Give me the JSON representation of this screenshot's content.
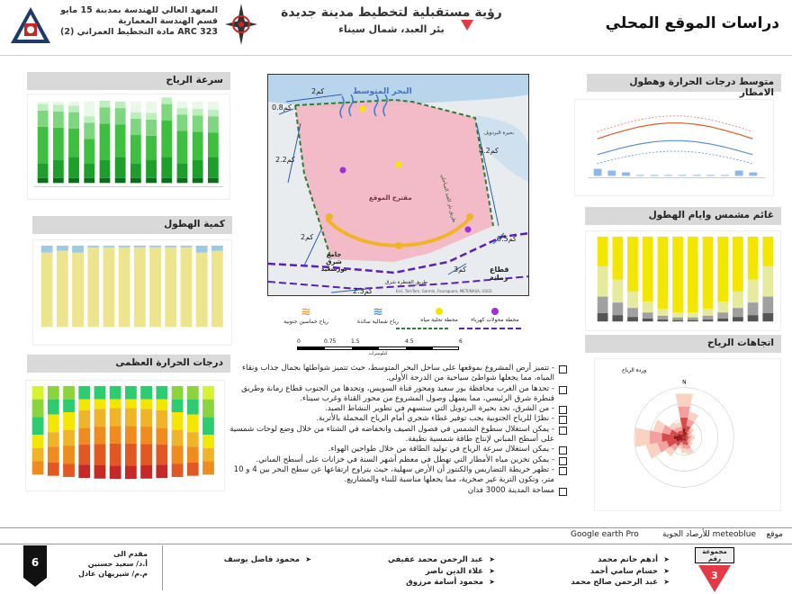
{
  "header": {
    "page_title": "دراسات الموقع المحلي",
    "project_title": "رؤية مستقبلية لتخطيط مدينة جديدة",
    "project_location": "بئر العبد، شمال سيناء",
    "school_lines": [
      "المعهد العالي للهندسة بمدينة 15 مايو",
      "قسم الهندسة المعمارية",
      "مادة التخطيط العمراني (2)  ARC 323"
    ]
  },
  "sections": {
    "temperature_rain": "متوسط درجات الحرارة وهطول الامطار",
    "cloudy_sunny": "غائم مشمس وايام الهطول",
    "wind_directions": "اتجاهات الرياح",
    "wind_speed": "سرعة الرياح",
    "precipitation": "كمية الهطول",
    "max_temperature": "درجات الحرارة العظمى"
  },
  "map": {
    "sea_label": "البحر المتوسط",
    "site_label": "مقترح الموقع",
    "lake_label": "بحيرة البردويل",
    "road_label": "طريق بئر العبد الساحلي",
    "mosque_label": "جامع شرق بورسعيد",
    "rommana_label": "قطاع رمانة",
    "qantara_label": "طريق القنطرة شرق",
    "dist_top": "2كم",
    "dist_topleft": "0.8كم",
    "dist_right": "4.2كم",
    "dist_left": "2.2كم",
    "dist_leftbottom": "2كم",
    "dist_bottomright": "0.5كم",
    "dist_bottom": "2.3كم",
    "dist_rommana": "3كم",
    "credit": "Esri, TomTom, Garmin, Foursquare, METI/NASA, USGS"
  },
  "map_legend": [
    {
      "label": "رياح خماسين جنوبية",
      "icon": "hot-wind-icon"
    },
    {
      "label": "رياح شمالية سائدة",
      "icon": "north-wind-icon"
    },
    {
      "label": "محطة تحلية مياه",
      "icon": "desalination-dot-icon"
    },
    {
      "label": "محطة محولات كهرباء",
      "icon": "power-station-dot-icon"
    }
  ],
  "scale": {
    "ticks": [
      "0",
      "0.75",
      "1.5",
      "",
      "4.5",
      "",
      "6"
    ],
    "unit": "كيلومترات"
  },
  "bullets": [
    "تتميز أرض المشروع بموقعها على ساحل البحر المتوسط، حيث تتميز شواطئها بجمال جذاب ونقاء المياه، مما يجعلها شواطئ سياحية من الدرجة الأولى.",
    "تحدها من الغرب محافظة بور سعيد ومحور قناة السويس، وتحدها من الجنوب قطاع رمانة وطريق قنطرة شرق الرئيسي، مما يسهل وصول المشروع من محور القناة وغرب سيناء.",
    "من الشرق، نجد بحيرة البردويل التي ستسهم في تطوير النشاط الصيد.",
    "نظرًا للرياح الجنوبية يجب توفير غطاء شجري أمام الرياح المحملة بالأتربة.",
    "يمكن استغلال سطوع الشمس في فصول الصيف وانخفاضه في الشتاء من خلال وضع لوحات شمسية على أسطح المباني لإنتاج طاقة شمسية نظيفة.",
    "يمكن استغلال سرعة الرياح في توليد الطاقة من خلال طواحين الهواء.",
    "يمكن تخزين مياه الأمطار التي تهطل في معظم أشهر السنة في خزانات على أسطح المباني.",
    "تظهر خريطة التضاريس والكنتور أن الأرض سهلية، حيث يتراوح ارتفاعها عن سطح البحر بين 4 و 10 متر، وتكون التربة غير صخرية، مما يجعلها مناسبة للبناء والمشاريع.",
    "مساحة المدينة 3000 فدان"
  ],
  "sources": {
    "label": "موقع",
    "meteoblue": "meteoblue للأرصاد الجوية",
    "google": "Google earth Pro"
  },
  "footer": {
    "students_col1": [
      "أدهم حاتم محمد",
      "حسام سامي أحمد",
      "عبد الرحمن صالح محمد"
    ],
    "students_col2": [
      "عبد الرحمن محمد عفيفي",
      "علاء الدين ناصر",
      "محمود أسامة مرزوق"
    ],
    "students_col3": [
      "محمود فاضل يوسف"
    ],
    "submitted_to": "مقدم الى",
    "supervisors": [
      "أ.د/ سعيد حسنين",
      "م.م/ شيريهان عادل"
    ],
    "group_number": "3",
    "group_label": "مجموعة رقم",
    "sheet_number": "6"
  },
  "wind_rose": {
    "title": "وردة الرياح",
    "N": "N"
  },
  "colors": {
    "site_fill": "#f4b6c2",
    "sea_label": "#4472c4",
    "road": "#2e7d32",
    "border_purple": "#5b21b6",
    "wind_green_dark": "#1e9e2a",
    "wind_green_light": "#7ed67e",
    "precip_yellow": "#ece58d",
    "sunny_yellow": "#f3e600",
    "red_marker": "#e63946"
  }
}
